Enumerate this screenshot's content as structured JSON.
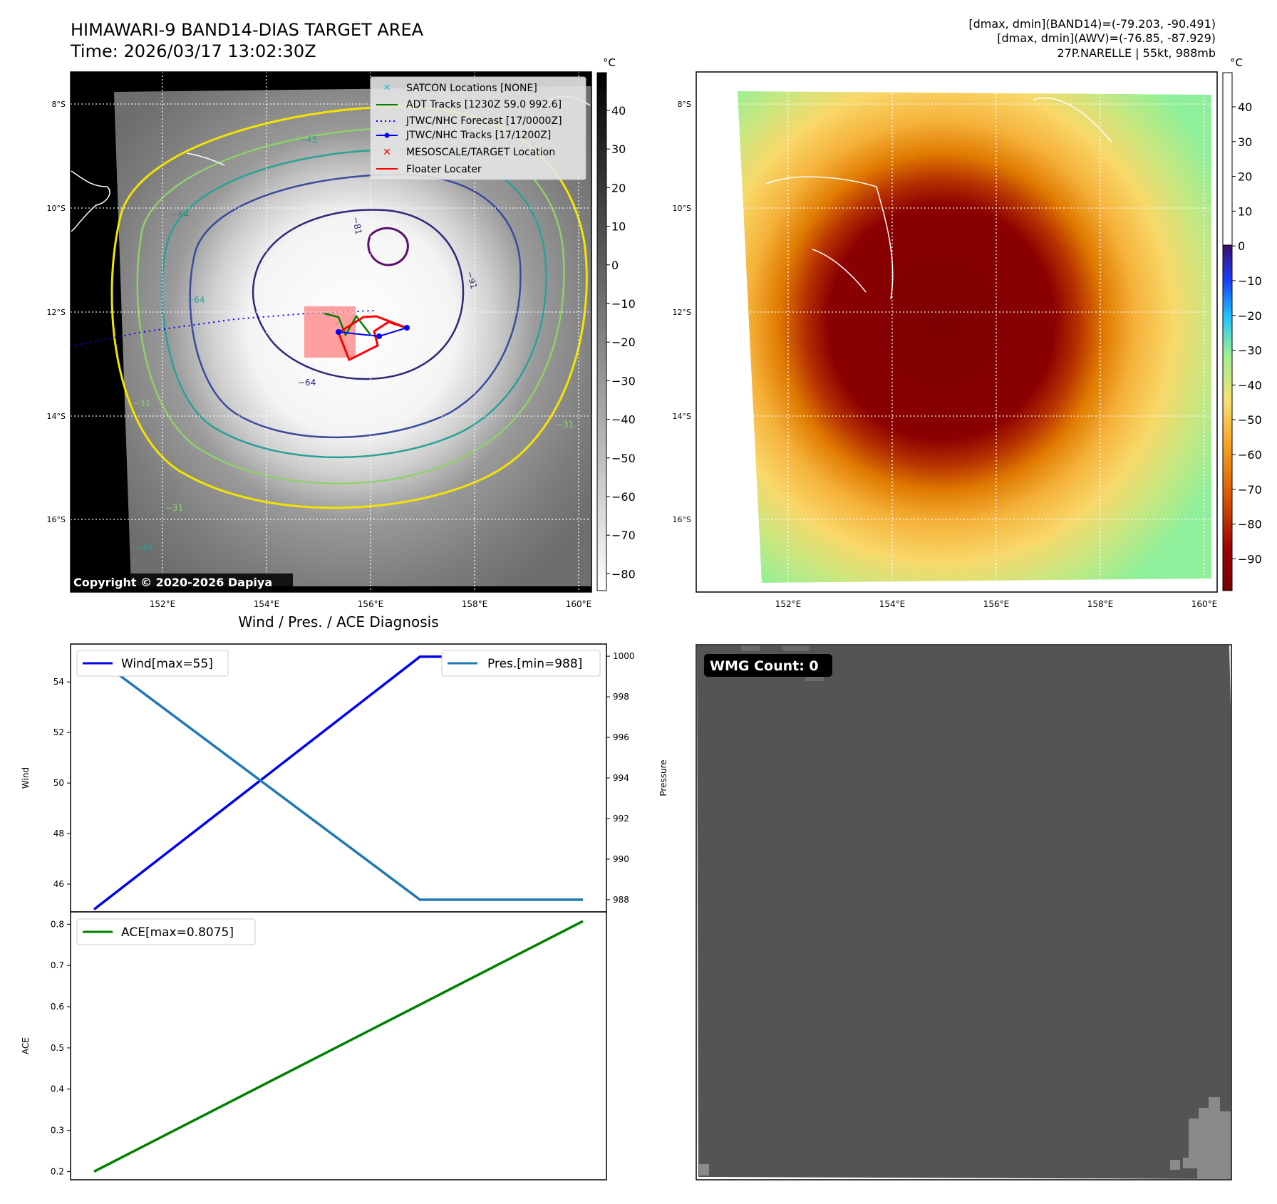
{
  "header": {
    "title_line1": "HIMAWARI-9 BAND14-DIAS TARGET AREA",
    "title_line2": "Time: 2026/03/17 13:02:30Z",
    "info_line1": "[dmax, dmin](BAND14)=(-79.203, -90.491)",
    "info_line2": "[dmax, dmin](AWV)=(-76.85, -87.929)",
    "info_line3": "27P.NARELLE | 55kt, 988mb"
  },
  "map_axes": {
    "lat_labels": [
      "8°S",
      "10°S",
      "12°S",
      "14°S",
      "16°S"
    ],
    "lon_labels": [
      "152°E",
      "154°E",
      "156°E",
      "158°E",
      "160°E"
    ]
  },
  "colorbar_left": {
    "unit": "°C",
    "ticks": [
      "40",
      "30",
      "20",
      "10",
      "0",
      "−10",
      "−20",
      "−30",
      "−40",
      "−50",
      "−60",
      "−70",
      "−80"
    ]
  },
  "colorbar_right": {
    "unit": "°C",
    "ticks": [
      "40",
      "30",
      "20",
      "10",
      "0",
      "−10",
      "−20",
      "−30",
      "−40",
      "−50",
      "−60",
      "−70",
      "−80",
      "−90"
    ]
  },
  "legend": {
    "items": [
      {
        "label": "SATCON Locations [NONE]",
        "color": "#17becf",
        "style": "x"
      },
      {
        "label": "ADT Tracks [1230Z 59.0 992.6]",
        "color": "#008000",
        "style": "line"
      },
      {
        "label": "JTWC/NHC Forecast [17/0000Z]",
        "color": "#0000ff",
        "style": "dotted"
      },
      {
        "label": "JTWC/NHC Tracks [17/1200Z]",
        "color": "#0000ff",
        "style": "line-dot"
      },
      {
        "label": "MESOSCALE/TARGET Location",
        "color": "#ff0000",
        "style": "x"
      },
      {
        "label": "Floater Locater",
        "color": "#ff0000",
        "style": "line"
      }
    ]
  },
  "contour_labels": [
    "−64",
    "−81",
    "−91",
    "−64",
    "−64",
    "−31",
    "−31",
    "−31",
    "−45",
    "−64"
  ],
  "copyright": "Copyright © 2020-2026 Dapiya",
  "wmg": {
    "label": "WMG Count: 0"
  },
  "chart_data": [
    {
      "type": "line",
      "title": "Wind / Pres. / ACE Diagnosis",
      "ylabel": "Wind",
      "ylabel_right": "Pressure",
      "x": [
        0,
        1,
        2,
        3
      ],
      "ylim": [
        44.9,
        55.5
      ],
      "ylim_right": [
        987.4,
        1000.6
      ],
      "yticks": [
        46,
        48,
        50,
        52,
        54
      ],
      "yticks_right": [
        988,
        990,
        992,
        994,
        996,
        998,
        1000
      ],
      "series": [
        {
          "name": "Wind[max=55]",
          "axis": "left",
          "color": "#0000ee",
          "values": [
            45,
            50,
            55,
            55
          ]
        },
        {
          "name": "Pres.[min=988]",
          "axis": "right",
          "color": "#1f77b4",
          "values": [
            1000,
            994,
            988,
            988
          ]
        }
      ],
      "legend": [
        "top-left",
        "top-right"
      ]
    },
    {
      "type": "line",
      "ylabel": "ACE",
      "x": [
        0,
        1,
        2,
        3
      ],
      "ylim": [
        0.18,
        0.83
      ],
      "yticks": [
        0.2,
        0.3,
        0.4,
        0.5,
        0.6,
        0.7,
        0.8
      ],
      "series": [
        {
          "name": "ACE[max=0.8075]",
          "axis": "left",
          "color": "#008000",
          "values": [
            0.2,
            0.4025,
            0.605,
            0.8075
          ]
        }
      ],
      "legend": "top-left"
    }
  ]
}
